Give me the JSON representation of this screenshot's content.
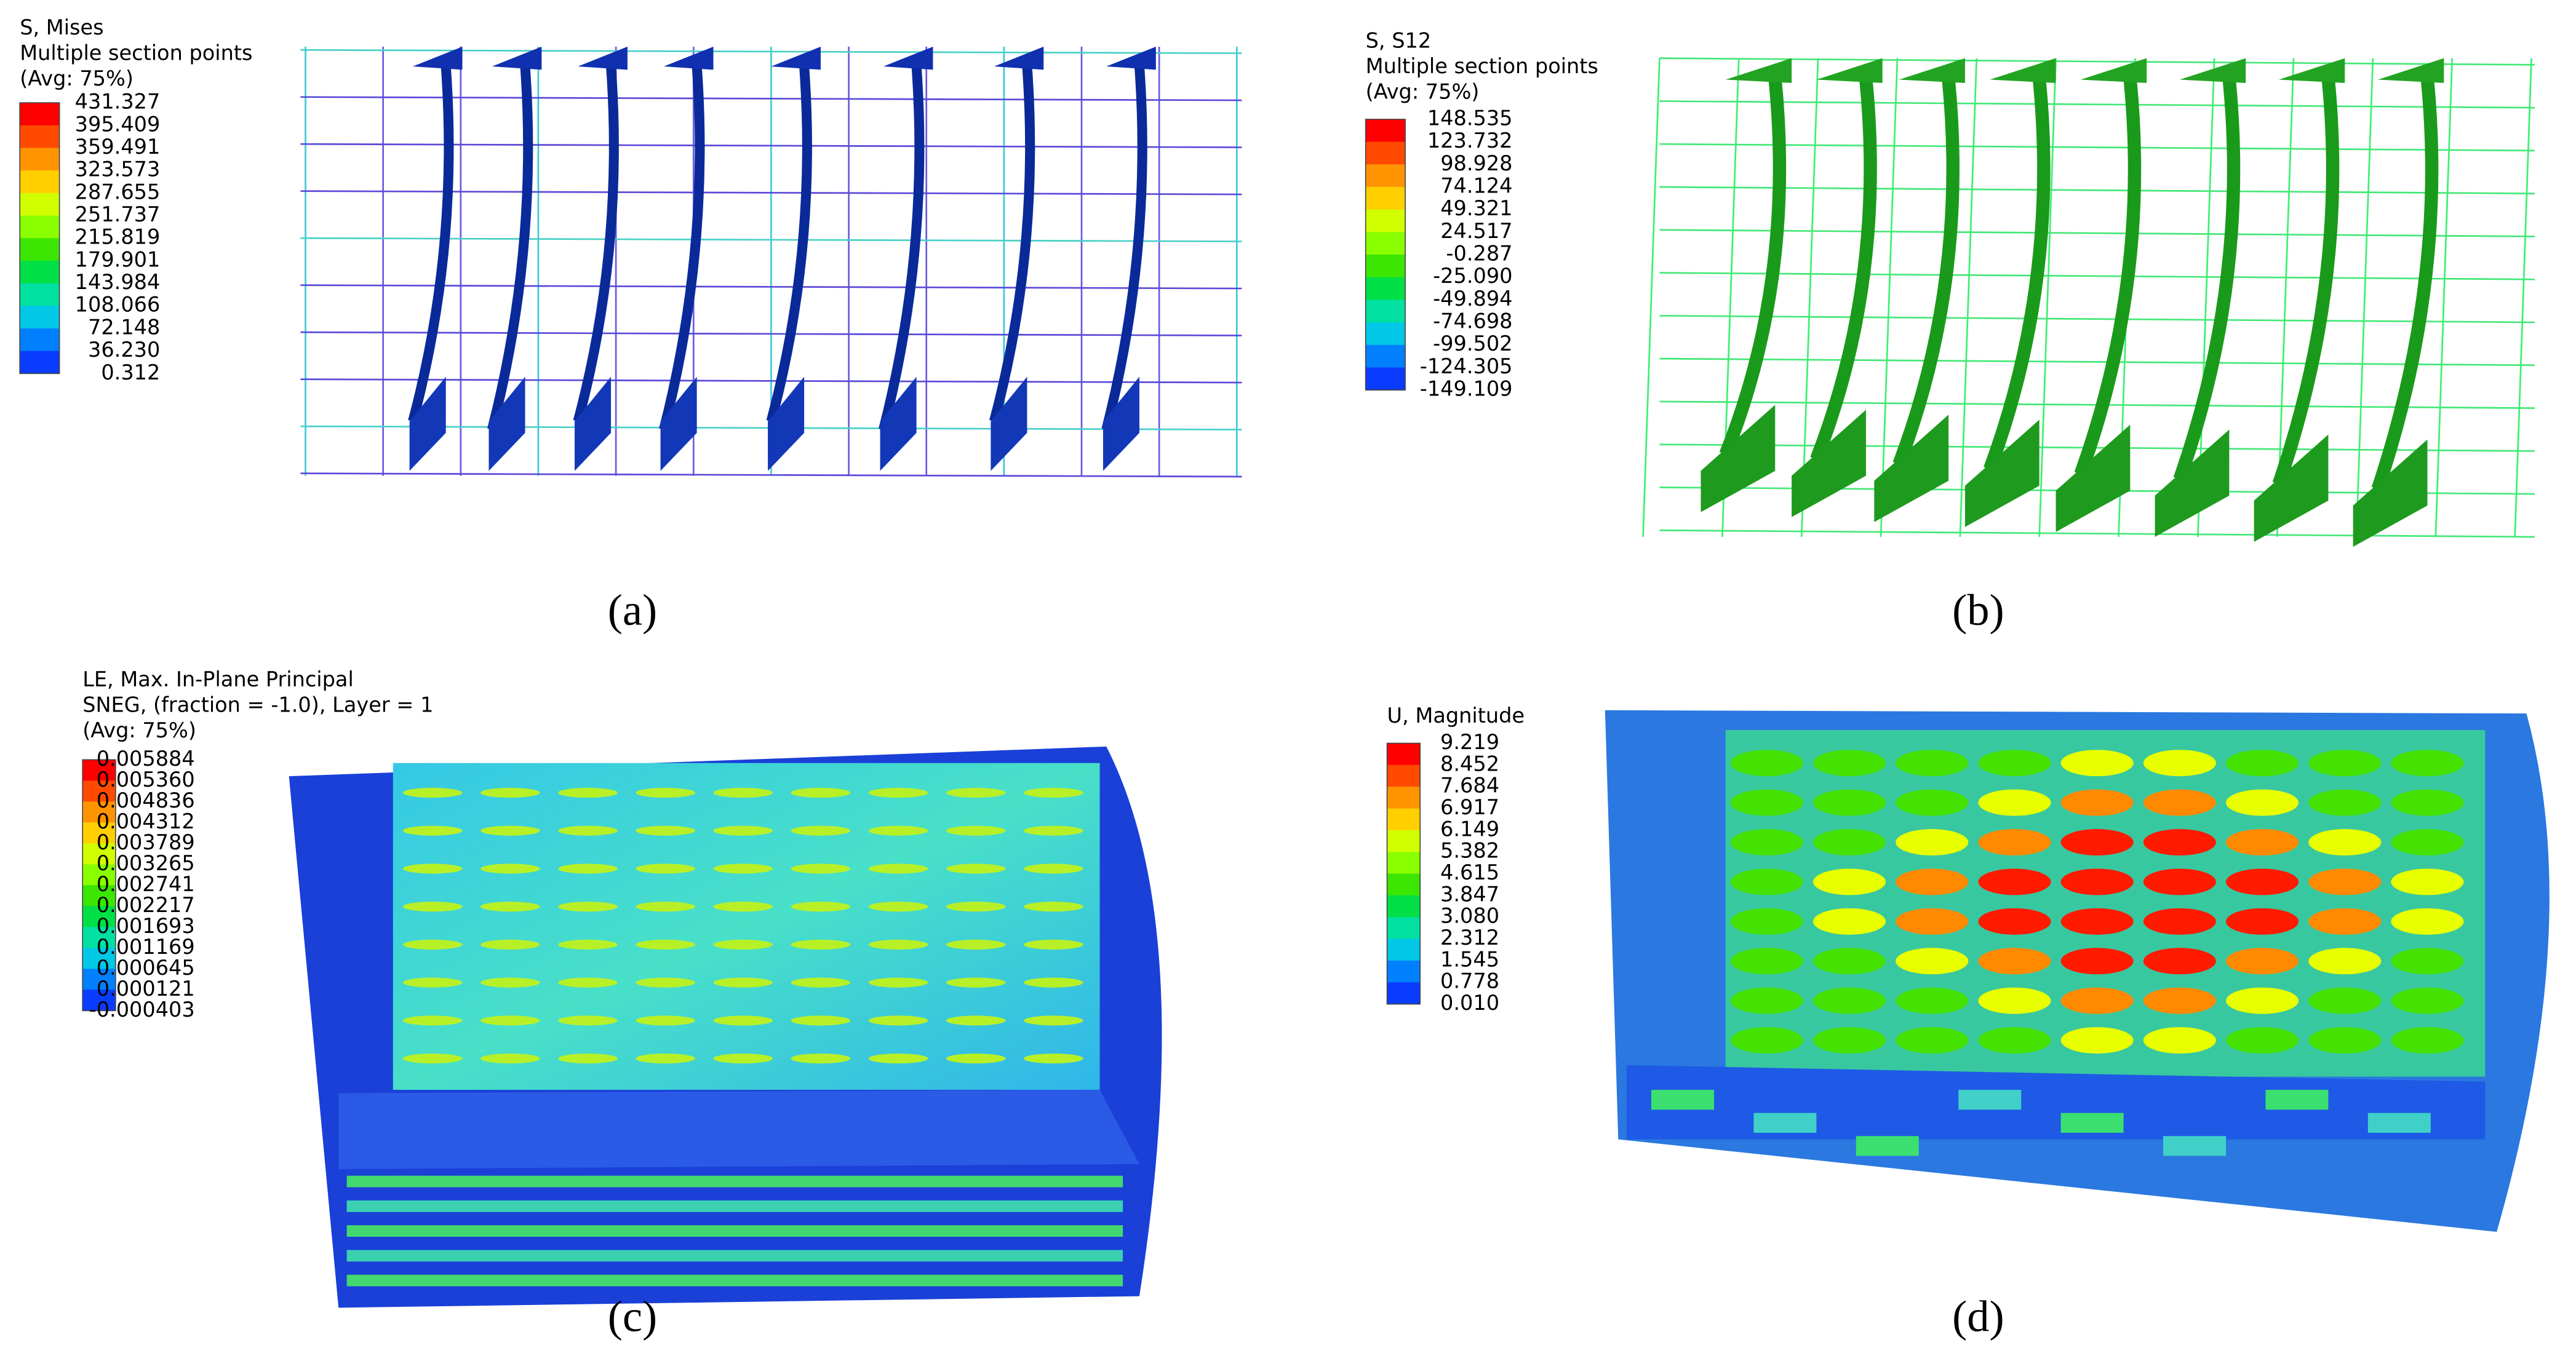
{
  "panels": [
    {
      "caption": "(a)",
      "legend": {
        "title": [
          "S, Mises",
          "Multiple section points",
          "(Avg: 75%)"
        ],
        "values": [
          "431.327",
          "395.409",
          "359.491",
          "323.573",
          "287.655",
          "251.737",
          "215.819",
          "179.901",
          "143.984",
          "108.066",
          "72.148",
          "36.230",
          "0.312"
        ]
      }
    },
    {
      "caption": "(b)",
      "legend": {
        "title": [
          "S, S12",
          "Multiple section points",
          "(Avg: 75%)"
        ],
        "values": [
          "148.535",
          "123.732",
          "98.928",
          "74.124",
          "49.321",
          "24.517",
          "-0.287",
          "-25.090",
          "-49.894",
          "-74.698",
          "-99.502",
          "-124.305",
          "-149.109"
        ]
      }
    },
    {
      "caption": "(c)",
      "legend": {
        "title": [
          "LE, Max. In-Plane Principal",
          "SNEG, (fraction = -1.0), Layer = 1",
          "(Avg: 75%)"
        ],
        "values": [
          "0.005884",
          "0.005360",
          "0.004836",
          "0.004312",
          "0.003789",
          "0.003265",
          "0.002741",
          "0.002217",
          "0.001693",
          "0.001169",
          "0.000645",
          "0.000121",
          "-0.000403"
        ]
      }
    },
    {
      "caption": "(d)",
      "legend": {
        "title": [
          "U, Magnitude"
        ],
        "values": [
          "9.219",
          "8.452",
          "7.684",
          "6.917",
          "6.149",
          "5.382",
          "4.615",
          "3.847",
          "3.080",
          "2.312",
          "1.545",
          "0.778",
          "0.010"
        ]
      }
    }
  ]
}
